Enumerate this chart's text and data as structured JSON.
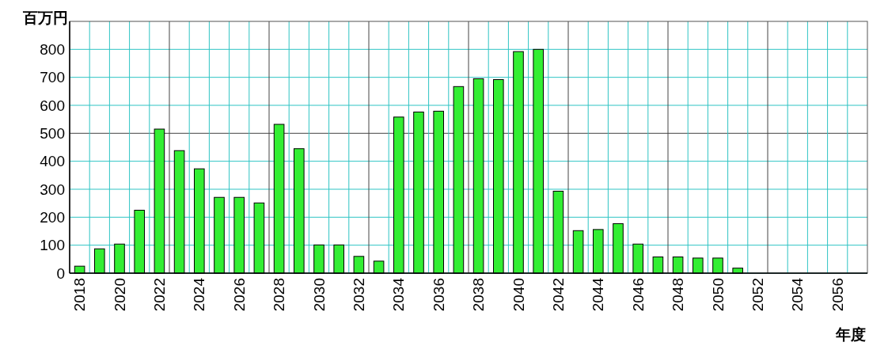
{
  "chart_data": {
    "type": "bar",
    "ylabel": "百万円",
    "xlabel": "年度",
    "categories": [
      "2018",
      null,
      "2020",
      null,
      "2022",
      null,
      "2024",
      null,
      "2026",
      null,
      "2028",
      null,
      "2030",
      null,
      "2032",
      null,
      "2034",
      null,
      "2036",
      null,
      "2038",
      null,
      "2040",
      null,
      "2042",
      null,
      "2044",
      null,
      "2046",
      null,
      "2048",
      null,
      "2050",
      null,
      "2052",
      null,
      "2054",
      null,
      "2056",
      null
    ],
    "values": [
      25,
      87,
      104,
      225,
      515,
      438,
      373,
      271,
      271,
      251,
      532,
      445,
      101,
      101,
      60,
      43,
      558,
      576,
      579,
      667,
      695,
      692,
      792,
      800,
      293,
      152,
      156,
      177,
      104,
      58,
      58,
      54,
      54,
      18,
      null,
      null,
      null,
      null,
      null,
      null
    ],
    "color": "#33ee33",
    "ylim": [
      0,
      900
    ],
    "yticks": [
      0,
      100,
      200,
      300,
      400,
      500,
      600,
      700,
      800
    ],
    "grid": true
  }
}
